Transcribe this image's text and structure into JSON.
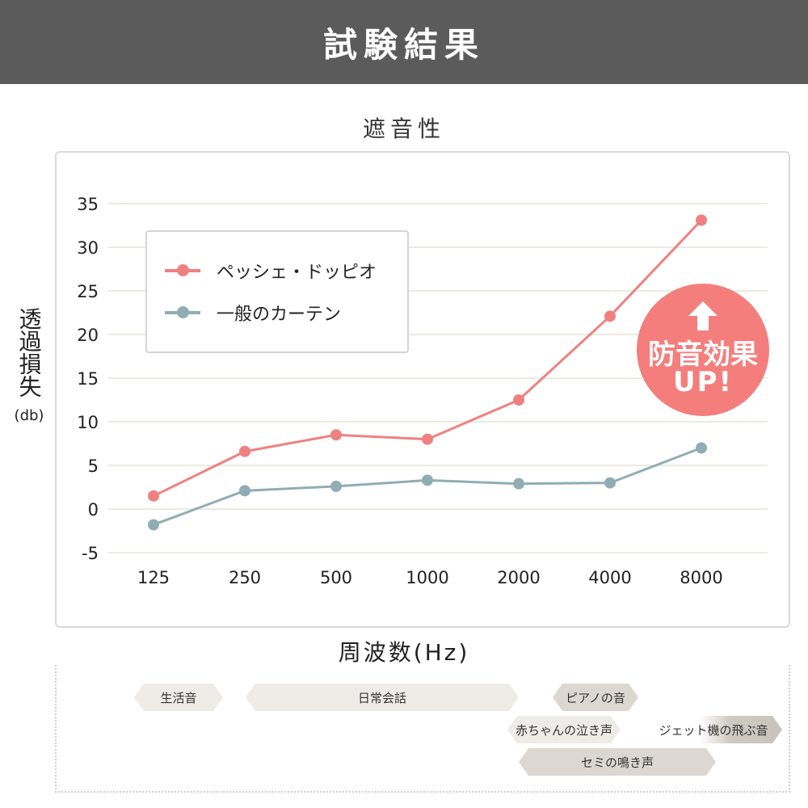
{
  "header": {
    "title": "試験結果"
  },
  "chart_data": {
    "type": "line",
    "title": "遮音性",
    "xlabel": "周波数(Hz)",
    "ylabel": "透過損失",
    "yunit": "(db)",
    "categories": [
      "125",
      "250",
      "500",
      "1000",
      "2000",
      "4000",
      "8000"
    ],
    "yticks": [
      "35",
      "30",
      "25",
      "20",
      "15",
      "10",
      "5",
      "0",
      "-5"
    ],
    "ylim": [
      -5,
      35
    ],
    "grid": true,
    "legend_position": "top-left",
    "series": [
      {
        "name": "ペッシェ・ドッピオ",
        "color": "#f08080",
        "values": [
          1.5,
          6.6,
          8.5,
          8.0,
          12.5,
          22.1,
          33.1
        ]
      },
      {
        "name": "一般のカーテン",
        "color": "#8fadb3",
        "values": [
          -1.8,
          2.1,
          2.6,
          3.3,
          2.9,
          3.0,
          7.0
        ]
      }
    ]
  },
  "badge": {
    "line1": "防音効果",
    "line2": "UP!",
    "color": "#f47e7c"
  },
  "sound_examples": [
    {
      "label": "生活音"
    },
    {
      "label": "日常会話"
    },
    {
      "label": "ピアノの音"
    },
    {
      "label": "赤ちゃんの泣き声"
    },
    {
      "label": "ジェット機の飛ぶ音"
    },
    {
      "label": "セミの鳴き声"
    }
  ]
}
